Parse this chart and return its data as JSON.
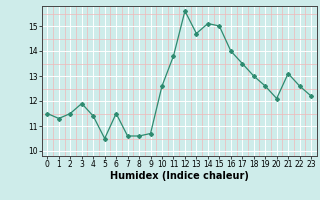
{
  "x": [
    0,
    1,
    2,
    3,
    4,
    5,
    6,
    7,
    8,
    9,
    10,
    11,
    12,
    13,
    14,
    15,
    16,
    17,
    18,
    19,
    20,
    21,
    22,
    23
  ],
  "y": [
    11.5,
    11.3,
    11.5,
    11.9,
    11.4,
    10.5,
    11.5,
    10.6,
    10.6,
    10.7,
    12.6,
    13.8,
    15.6,
    14.7,
    15.1,
    15.0,
    14.0,
    13.5,
    13.0,
    12.6,
    12.1,
    13.1,
    12.6,
    12.2
  ],
  "line_color": "#2e8b70",
  "marker": "D",
  "marker_size": 2.0,
  "line_width": 0.9,
  "bg_color": "#ceecea",
  "grid_color_major": "#ffffff",
  "grid_color_minor": "#f0b8b8",
  "xlabel": "Humidex (Indice chaleur)",
  "xlim": [
    -0.5,
    23.5
  ],
  "ylim": [
    9.8,
    15.8
  ],
  "yticks": [
    10,
    11,
    12,
    13,
    14,
    15
  ],
  "xticks": [
    0,
    1,
    2,
    3,
    4,
    5,
    6,
    7,
    8,
    9,
    10,
    11,
    12,
    13,
    14,
    15,
    16,
    17,
    18,
    19,
    20,
    21,
    22,
    23
  ],
  "tick_fontsize": 5.5,
  "xlabel_fontsize": 7.0
}
